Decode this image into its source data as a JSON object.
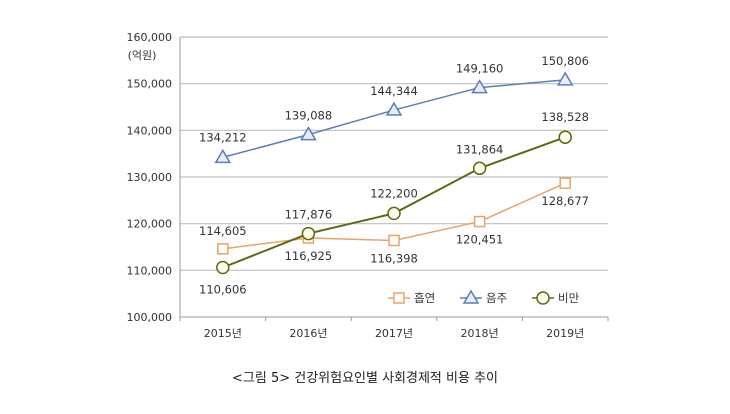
{
  "chart_data": {
    "type": "line",
    "title": "",
    "caption": "<그림 5> 건강위험요인별 사회경제적 비용 추이",
    "unit_label": "(억원)",
    "xlabel": "",
    "ylabel": "",
    "categories": [
      "2015년",
      "2016년",
      "2017년",
      "2018년",
      "2019년"
    ],
    "ylim": [
      100000,
      160000
    ],
    "yticks": [
      100000,
      110000,
      120000,
      130000,
      140000,
      150000,
      160000
    ],
    "ytick_labels": [
      "100,000",
      "110,000",
      "120,000",
      "130,000",
      "140,000",
      "150,000",
      "160,000"
    ],
    "grid": true,
    "legend_position": "bottom-right",
    "series": [
      {
        "name": "흡연",
        "marker": "square",
        "color": "#E8A468",
        "values": [
          114605,
          116925,
          116398,
          120451,
          128677
        ],
        "labels": [
          "114,605",
          "116,925",
          "116,398",
          "120,451",
          "128,677"
        ]
      },
      {
        "name": "음주",
        "marker": "triangle",
        "color": "#5B7DB8",
        "values": [
          134212,
          139088,
          144344,
          149160,
          150806
        ],
        "labels": [
          "134,212",
          "139,088",
          "144,344",
          "149,160",
          "150,806"
        ]
      },
      {
        "name": "비만",
        "marker": "circle",
        "color": "#5C6B12",
        "values": [
          110606,
          117876,
          122200,
          131864,
          138528
        ],
        "labels": [
          "110,606",
          "117,876",
          "122,200",
          "131,864",
          "138,528"
        ]
      }
    ]
  }
}
